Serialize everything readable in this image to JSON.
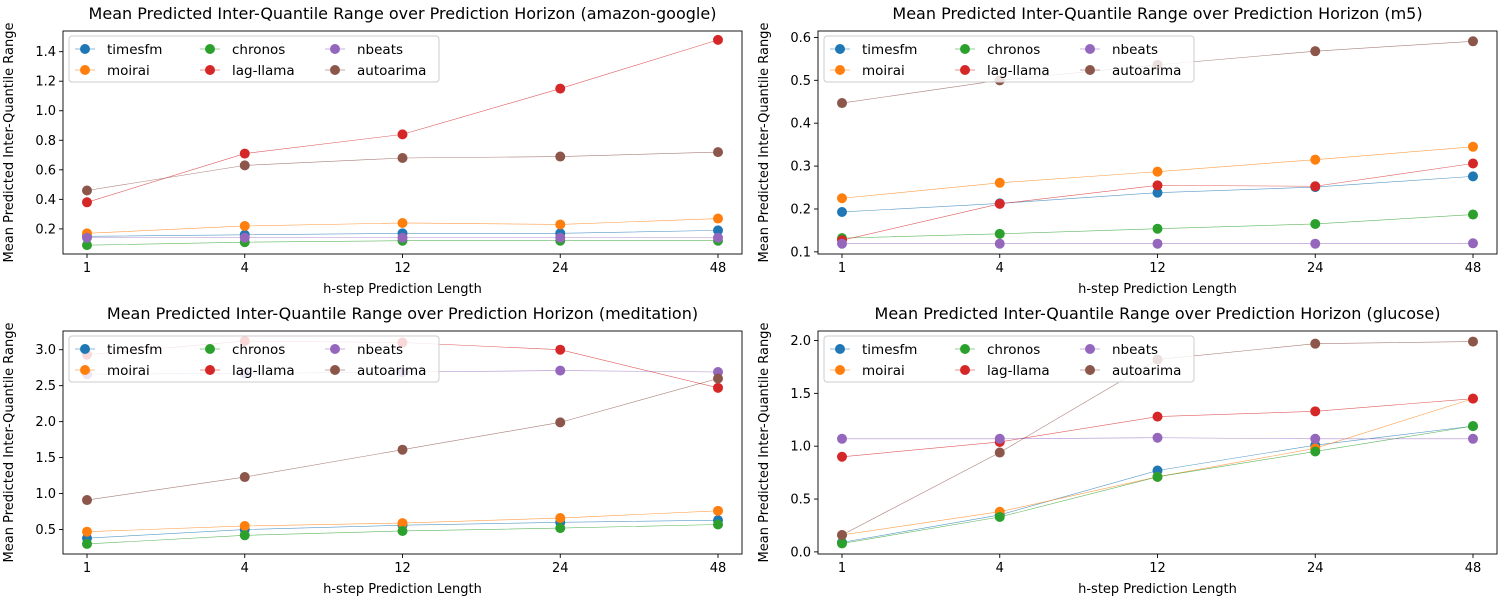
{
  "colors": {
    "timesfm": "#1f77b4",
    "moirai": "#ff7f0e",
    "chronos": "#2ca02c",
    "lag-llama": "#d62728",
    "nbeats": "#9467bd",
    "autoarima": "#8c564b"
  },
  "chart_data": [
    {
      "type": "line",
      "title": "Mean Predicted Inter-Quantile Range over Prediction Horizon (amazon-google)",
      "xlabel": "h-step Prediction Length",
      "ylabel": "Mean Predicted Inter-Quantile Range",
      "categories": [
        "1",
        "4",
        "12",
        "24",
        "48"
      ],
      "ylim": [
        0.03,
        1.54
      ],
      "yticks": [
        "0.2",
        "0.4",
        "0.6",
        "0.8",
        "1.0",
        "1.2",
        "1.4"
      ],
      "legend": "top-left",
      "series": [
        {
          "name": "timesfm",
          "values": [
            0.15,
            0.16,
            0.17,
            0.17,
            0.19
          ]
        },
        {
          "name": "moirai",
          "values": [
            0.17,
            0.22,
            0.24,
            0.23,
            0.27
          ]
        },
        {
          "name": "chronos",
          "values": [
            0.09,
            0.11,
            0.12,
            0.12,
            0.12
          ]
        },
        {
          "name": "lag-llama",
          "values": [
            0.38,
            0.71,
            0.84,
            1.15,
            1.48
          ]
        },
        {
          "name": "nbeats",
          "values": [
            0.14,
            0.14,
            0.14,
            0.14,
            0.14
          ]
        },
        {
          "name": "autoarima",
          "values": [
            0.46,
            0.63,
            0.68,
            0.69,
            0.72
          ]
        }
      ]
    },
    {
      "type": "line",
      "title": "Mean Predicted Inter-Quantile Range over Prediction Horizon (m5)",
      "xlabel": "h-step Prediction Length",
      "ylabel": "Mean Predicted Inter-Quantile Range",
      "categories": [
        "1",
        "4",
        "12",
        "24",
        "48"
      ],
      "ylim": [
        0.095,
        0.615
      ],
      "yticks": [
        "0.1",
        "0.2",
        "0.3",
        "0.4",
        "0.5",
        "0.6"
      ],
      "legend": "top-left",
      "series": [
        {
          "name": "timesfm",
          "values": [
            0.193,
            0.213,
            0.238,
            0.251,
            0.276
          ]
        },
        {
          "name": "moirai",
          "values": [
            0.225,
            0.261,
            0.287,
            0.315,
            0.345
          ]
        },
        {
          "name": "chronos",
          "values": [
            0.132,
            0.142,
            0.154,
            0.165,
            0.187
          ]
        },
        {
          "name": "lag-llama",
          "values": [
            0.127,
            0.212,
            0.255,
            0.253,
            0.306
          ]
        },
        {
          "name": "nbeats",
          "values": [
            0.119,
            0.119,
            0.119,
            0.119,
            0.12
          ]
        },
        {
          "name": "autoarima",
          "values": [
            0.447,
            0.5,
            0.536,
            0.568,
            0.591
          ]
        }
      ]
    },
    {
      "type": "line",
      "title": "Mean Predicted Inter-Quantile Range over Prediction Horizon (meditation)",
      "xlabel": "h-step Prediction Length",
      "ylabel": "Mean Predicted Inter-Quantile Range",
      "categories": [
        "1",
        "4",
        "12",
        "24",
        "48"
      ],
      "ylim": [
        0.16,
        3.26
      ],
      "yticks": [
        "0.5",
        "1.0",
        "1.5",
        "2.0",
        "2.5",
        "3.0"
      ],
      "legend": "top-left",
      "series": [
        {
          "name": "timesfm",
          "values": [
            0.38,
            0.5,
            0.56,
            0.6,
            0.63
          ]
        },
        {
          "name": "moirai",
          "values": [
            0.47,
            0.55,
            0.59,
            0.66,
            0.76
          ]
        },
        {
          "name": "chronos",
          "values": [
            0.3,
            0.42,
            0.48,
            0.52,
            0.57
          ]
        },
        {
          "name": "lag-llama",
          "values": [
            2.93,
            3.12,
            3.1,
            3.0,
            2.47
          ]
        },
        {
          "name": "nbeats",
          "values": [
            2.66,
            2.67,
            2.69,
            2.71,
            2.69
          ]
        },
        {
          "name": "autoarima",
          "values": [
            0.91,
            1.23,
            1.61,
            1.99,
            2.6
          ]
        }
      ]
    },
    {
      "type": "line",
      "title": "Mean Predicted Inter-Quantile Range over Prediction Horizon (glucose)",
      "xlabel": "h-step Prediction Length",
      "ylabel": "Mean Predicted Inter-Quantile Range",
      "categories": [
        "1",
        "4",
        "12",
        "24",
        "48"
      ],
      "ylim": [
        -0.02,
        2.09
      ],
      "yticks": [
        "0.0",
        "0.5",
        "1.0",
        "1.5",
        "2.0"
      ],
      "legend": "top-left",
      "series": [
        {
          "name": "timesfm",
          "values": [
            0.09,
            0.35,
            0.77,
            1.01,
            1.19
          ]
        },
        {
          "name": "moirai",
          "values": [
            0.16,
            0.38,
            0.71,
            0.98,
            1.45
          ]
        },
        {
          "name": "chronos",
          "values": [
            0.08,
            0.33,
            0.71,
            0.95,
            1.19
          ]
        },
        {
          "name": "lag-llama",
          "values": [
            0.9,
            1.04,
            1.28,
            1.33,
            1.45
          ]
        },
        {
          "name": "nbeats",
          "values": [
            1.07,
            1.07,
            1.08,
            1.07,
            1.07
          ]
        },
        {
          "name": "autoarima",
          "values": [
            0.16,
            0.94,
            1.82,
            1.97,
            1.99
          ]
        }
      ]
    }
  ]
}
